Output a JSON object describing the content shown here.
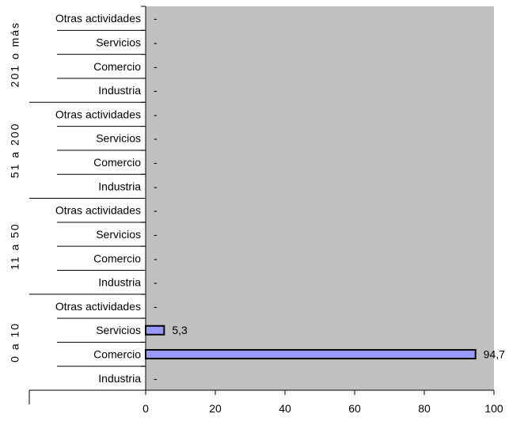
{
  "chart_data": {
    "type": "bar",
    "orientation": "horizontal",
    "groups": [
      {
        "label": "201 o más",
        "categories": [
          "Otras actividades",
          "Servicios",
          "Comercio",
          "Industria"
        ],
        "values": [
          null,
          null,
          null,
          null
        ],
        "value_labels": [
          "-",
          "-",
          "-",
          "-"
        ]
      },
      {
        "label": "51 a 200",
        "categories": [
          "Otras actividades",
          "Servicios",
          "Comercio",
          "Industria"
        ],
        "values": [
          null,
          null,
          null,
          null
        ],
        "value_labels": [
          "-",
          "-",
          "-",
          "-"
        ]
      },
      {
        "label": "11 a 50",
        "categories": [
          "Otras actividades",
          "Servicios",
          "Comercio",
          "Industria"
        ],
        "values": [
          null,
          null,
          null,
          null
        ],
        "value_labels": [
          "-",
          "-",
          "-",
          "-"
        ]
      },
      {
        "label": "0 a 10",
        "categories": [
          "Otras actividades",
          "Servicios",
          "Comercio",
          "Industria"
        ],
        "values": [
          null,
          5.3,
          94.7,
          null
        ],
        "value_labels": [
          "-",
          "5,3",
          "94,7",
          "-"
        ]
      }
    ],
    "xlim": [
      0,
      100
    ],
    "xticks": [
      "0",
      "20",
      "40",
      "60",
      "80",
      "100"
    ],
    "plot_background": "#c0c0c0",
    "bar_color": "#9999ff",
    "bar_edge_color": "#000000",
    "grid": false
  }
}
